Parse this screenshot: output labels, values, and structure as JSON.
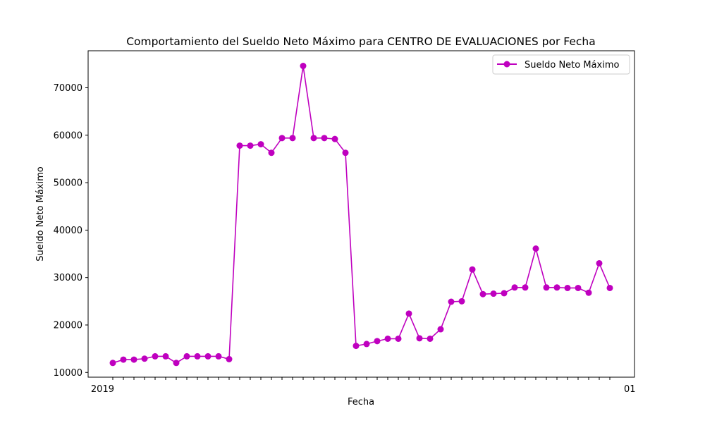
{
  "chart_data": {
    "type": "line",
    "title": "Comportamiento del Sueldo Neto Máximo para CENTRO DE EVALUACIONES por Fecha",
    "xlabel": "Fecha",
    "ylabel": "Sueldo Neto Máximo",
    "ylim": [
      9000,
      77800
    ],
    "yticks": [
      10000,
      20000,
      30000,
      40000,
      50000,
      60000,
      70000
    ],
    "ytick_labels": [
      "10000",
      "20000",
      "30000",
      "40000",
      "50000",
      "60000",
      "70000"
    ],
    "x_tick_label_first": "2019",
    "x_tick_label_last": "01",
    "grid": false,
    "legend_position": "upper right",
    "series": [
      {
        "name": "Sueldo Neto Máximo",
        "color": "#bf00bf",
        "marker": "circle",
        "values": [
          12000,
          12700,
          12700,
          12900,
          13400,
          13400,
          12000,
          13400,
          13400,
          13400,
          13400,
          12800,
          57800,
          57800,
          58100,
          56300,
          59400,
          59400,
          74600,
          59400,
          59400,
          59200,
          56300,
          15600,
          16000,
          16600,
          17100,
          17100,
          22400,
          17200,
          17100,
          19100,
          24900,
          25000,
          31700,
          26500,
          26600,
          26700,
          27900,
          27900,
          36100,
          27900,
          27900,
          27800,
          27800,
          26800,
          33000,
          27800
        ]
      }
    ]
  }
}
